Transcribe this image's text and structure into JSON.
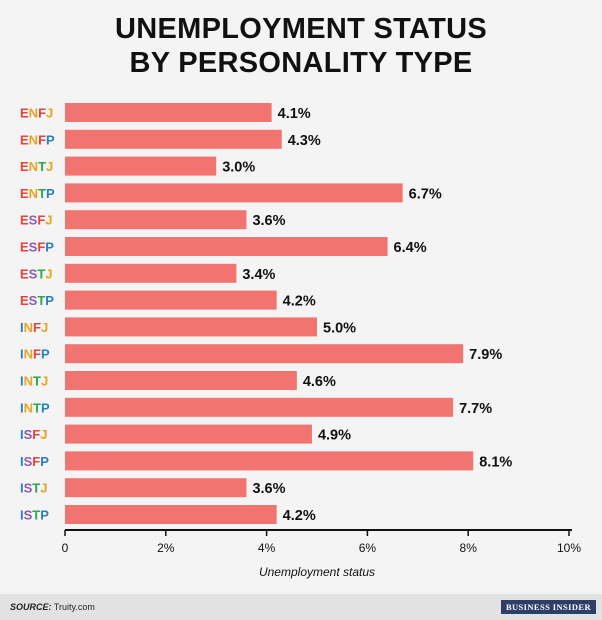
{
  "title_line1": "UNEMPLOYMENT STATUS",
  "title_line2": "BY PERSONALITY TYPE",
  "footer": {
    "source_label": "SOURCE:",
    "source_value": "Truity.com",
    "brand": "BUSINESS INSIDER"
  },
  "colors": {
    "bar": "#f27470",
    "E": "#e8423a",
    "I": "#2a7fc1",
    "N": "#e8a41f",
    "S": "#8d5bb2",
    "T": "#2aa84a",
    "F": "#e8423a",
    "J": "#e8a41f",
    "P": "#2a7fc1"
  },
  "chart_data": {
    "type": "bar",
    "orientation": "horizontal",
    "title": "UNEMPLOYMENT STATUS BY PERSONALITY TYPE",
    "xlabel": "Unemployment status",
    "ylabel": "",
    "xlim": [
      0,
      10
    ],
    "x_ticks": [
      "0",
      "2%",
      "4%",
      "6%",
      "8%",
      "10%"
    ],
    "categories": [
      "ENFJ",
      "ENFP",
      "ENTJ",
      "ENTP",
      "ESFJ",
      "ESFP",
      "ESTJ",
      "ESTP",
      "INFJ",
      "INFP",
      "INTJ",
      "INTP",
      "ISFJ",
      "ISFP",
      "ISTJ",
      "ISTP"
    ],
    "values": [
      4.1,
      4.3,
      3.0,
      6.7,
      3.6,
      6.4,
      3.4,
      4.2,
      5.0,
      7.9,
      4.6,
      7.7,
      4.9,
      8.1,
      3.6,
      4.2
    ],
    "value_labels": [
      "4.1%",
      "4.3%",
      "3.0%",
      "6.7%",
      "3.6%",
      "6.4%",
      "3.4%",
      "4.2%",
      "5.0%",
      "7.9%",
      "4.6%",
      "7.7%",
      "4.9%",
      "8.1%",
      "3.6%",
      "4.2%"
    ]
  }
}
